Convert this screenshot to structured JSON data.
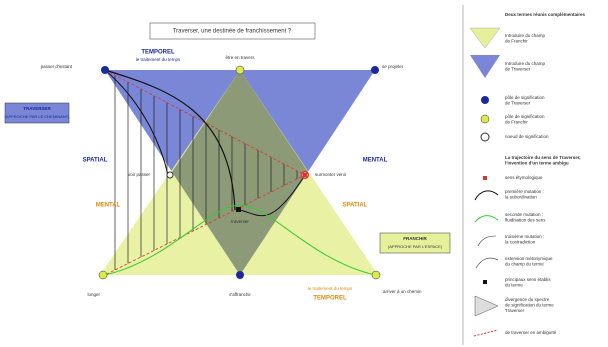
{
  "title": "Traverser, une destinée de franchissement ?",
  "axes": {
    "top": "TEMPOREL",
    "top_sub": "le traitement du temps",
    "left_top": "SPATIAL",
    "right_top": "MENTAL",
    "left_bottom": "MENTAL",
    "right_bottom": "SPATIAL",
    "bottom": "TEMPOREL",
    "bottom_sub": "le traitement du temps"
  },
  "boxes": {
    "traverser": [
      "TRAVERSER",
      "(APPROCHE PAR LE CHEMINANT)"
    ],
    "franchir": [
      "FRANCHIR",
      "(APPROCHE PAR L'ESPACE)"
    ]
  },
  "nodes": [
    "passer d'instant",
    "être en travers",
    "se projeter",
    "voir passer",
    "surmonter venir",
    "traverser",
    "longer",
    "s'affranchir",
    "arriver à un chemin"
  ],
  "legend": {
    "heading1": "Deux termes réunis complémentaires",
    "items1": [
      [
        "Introduire du champ",
        "de Franchir"
      ],
      [
        "Introduire du champ",
        "de Traverser"
      ],
      [
        "pôle de signification",
        "de Traverser"
      ],
      [
        "pôle de signification",
        "de Franchir"
      ],
      [
        "noeud de signification"
      ]
    ],
    "heading2": [
      "La trajectoire du sens de Traverser,",
      "l'invention d'un terme ambigu"
    ],
    "items2": [
      [
        "sens étymologique"
      ],
      [
        "première mutation :",
        "la subordination"
      ],
      [
        "seconde mutation :",
        "fluidisation des sens"
      ],
      [
        "troisième mutation :",
        "la contradiction"
      ],
      [
        "extension métonymique",
        "du champ du terme"
      ],
      [
        "principaux sens établis",
        "du terme"
      ],
      [
        "divergence du spectre",
        "de signification du terme",
        "Traverser"
      ],
      [
        "de traverser en ambiguïté"
      ]
    ]
  }
}
